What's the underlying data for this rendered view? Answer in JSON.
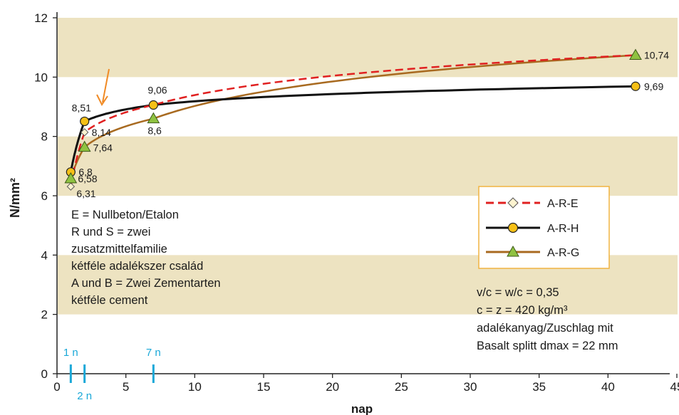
{
  "chart_data": {
    "type": "line",
    "xlabel": "nap",
    "ylabel": "N/mm²",
    "xlim": [
      0,
      45
    ],
    "ylim": [
      0,
      12
    ],
    "x_ticks": [
      0,
      5,
      10,
      15,
      20,
      25,
      30,
      35,
      40,
      45
    ],
    "y_ticks": [
      0,
      2,
      4,
      6,
      8,
      10,
      12
    ],
    "background_bands": [
      [
        2,
        4
      ],
      [
        6,
        8
      ],
      [
        10,
        12
      ]
    ],
    "band_color": "#ede3c1",
    "series": [
      {
        "name": "A-R-E",
        "color": "#e02020",
        "marker": "diamond",
        "x": [
          1,
          2,
          7,
          42
        ],
        "y": [
          6.31,
          8.14,
          9.06,
          10.74
        ],
        "labels": [
          "6,31",
          "8,14",
          "",
          ""
        ]
      },
      {
        "name": "A-R-H",
        "color": "#111111",
        "marker": "circle",
        "x": [
          1,
          2,
          7,
          42
        ],
        "y": [
          6.8,
          8.51,
          9.06,
          9.69
        ],
        "labels": [
          "6,8",
          "8,51",
          "9,06",
          "9,69"
        ]
      },
      {
        "name": "A-R-G",
        "color": "#a86a20",
        "marker": "triangle",
        "x": [
          1,
          2,
          7,
          42
        ],
        "y": [
          6.58,
          7.64,
          8.6,
          10.74
        ],
        "labels": [
          "6,58",
          "7,64",
          "8,6",
          "10,74"
        ]
      }
    ],
    "legend_position": "right",
    "day_markers": [
      {
        "x": 1,
        "label": "1 n"
      },
      {
        "x": 2,
        "label": "2 n"
      },
      {
        "x": 7,
        "label": "7 n"
      }
    ],
    "day_marker_color": "#1aa8d8",
    "arrow_color": "#f08a24",
    "notes_left": [
      "E = Nullbeton/Etalon",
      "R und S = zwei",
      "zusatzmittelfamilie",
      "kétféle adalékszer család",
      "A und B = Zwei Zementarten",
      "kétféle cement"
    ],
    "notes_right": [
      "v/c = w/c = 0,35",
      "c = z = 420 kg/m³",
      "adalékanyag/Zuschlag mit",
      "Basalt splitt dmax = 22 mm"
    ]
  }
}
